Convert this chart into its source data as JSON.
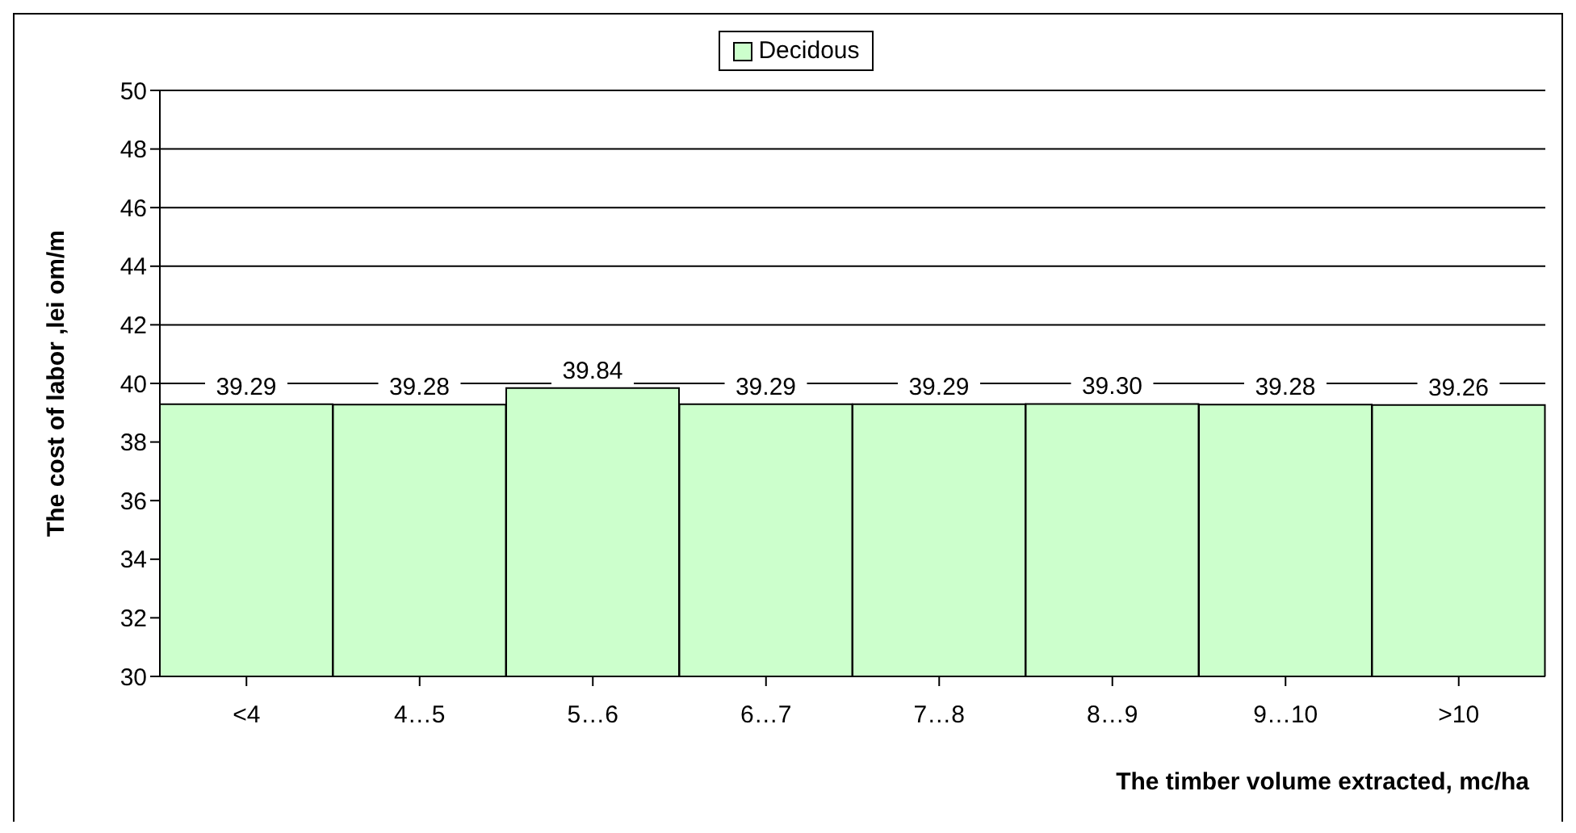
{
  "chart_data": {
    "type": "bar",
    "xlabel": "The timber volume extracted, mc/ha",
    "ylabel": "The cost of labor ,lei om/m",
    "categories": [
      "<4",
      "4…5",
      "5…6",
      "6…7",
      "7…8",
      "8…9",
      "9…10",
      ">10"
    ],
    "series": [
      {
        "name": "Decidous",
        "color": "#ccffcc",
        "values": [
          39.29,
          39.28,
          39.84,
          39.29,
          39.29,
          39.3,
          39.28,
          39.26
        ]
      }
    ],
    "value_labels": [
      "39.29",
      "39.28",
      "39.84",
      "39.29",
      "39.29",
      "39.30",
      "39.28",
      "39.26"
    ],
    "ylim": [
      30,
      50
    ],
    "yticks": [
      30,
      32,
      34,
      36,
      38,
      40,
      42,
      44,
      46,
      48,
      50
    ],
    "grid": "y",
    "legend": "top"
  }
}
